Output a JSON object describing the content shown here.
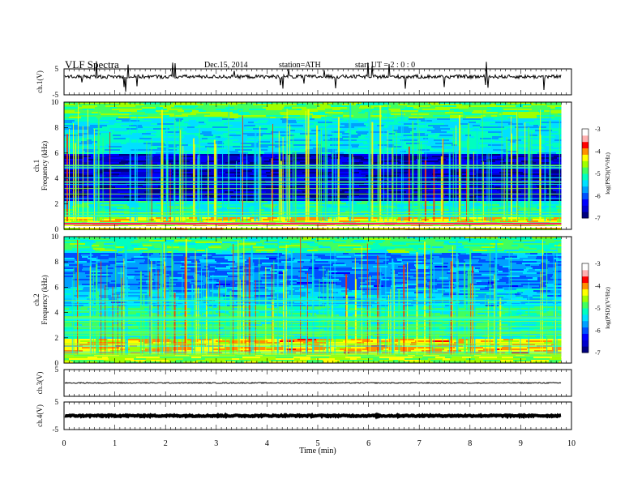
{
  "header": {
    "title": "VLF Spectra",
    "date": "Dec.15, 2014",
    "station": "station=ATH",
    "start": "start UT = 2 : 0 : 0"
  },
  "colors": {
    "background": "#ffffff",
    "trace": "#000000",
    "colormap": [
      "#000080",
      "#0000ff",
      "#0080ff",
      "#00ffff",
      "#00ff80",
      "#80ff00",
      "#ffff00",
      "#ff8000",
      "#ff0000",
      "#ffffff"
    ]
  },
  "chart_data": [
    {
      "id": "ch1-waveform",
      "type": "line",
      "ylabel": "ch.1(V)",
      "ylim": [
        -5,
        5
      ],
      "yticks": [
        "5",
        "-5"
      ],
      "xlim": [
        0,
        10
      ],
      "description_values": "baseline around 2 V with small fluctuations and occasional spikes",
      "level": 2.0
    },
    {
      "id": "ch1-spectrogram",
      "type": "heatmap",
      "ylabel": "Frequency (kHz)",
      "channel_label": "ch.1",
      "ylim": [
        0,
        10
      ],
      "yticks": [
        "0",
        "2",
        "4",
        "6",
        "8",
        "10"
      ],
      "xlim": [
        0,
        10
      ],
      "data_end_min": 9.8,
      "colorbar": {
        "label": "log(PSD)(V²/Hz)",
        "ticks": [
          "-3",
          "-4",
          "-5",
          "-6",
          "-7"
        ],
        "range": [
          -7,
          -3
        ]
      }
    },
    {
      "id": "ch2-spectrogram",
      "type": "heatmap",
      "ylabel": "Frequency (kHz)",
      "channel_label": "ch.2",
      "ylim": [
        0,
        10
      ],
      "yticks": [
        "0",
        "2",
        "4",
        "6",
        "8",
        "10"
      ],
      "xlim": [
        0,
        10
      ],
      "data_end_min": 9.8,
      "colorbar": {
        "label": "log(PSD)(V²/Hz)",
        "ticks": [
          "-3",
          "-4",
          "-5",
          "-6",
          "-7"
        ],
        "range": [
          -7,
          -3
        ]
      }
    },
    {
      "id": "ch3-waveform",
      "type": "line",
      "ylabel": "ch.3(V)",
      "ylim": [
        -5,
        5
      ],
      "yticks": [
        "5"
      ],
      "xlim": [
        0,
        10
      ],
      "level": 0.0
    },
    {
      "id": "ch4-waveform",
      "type": "line",
      "ylabel": "ch.4(V)",
      "ylim": [
        -5,
        5
      ],
      "yticks": [
        "5",
        "-5"
      ],
      "xlim": [
        0,
        10
      ],
      "level": 0.0
    }
  ],
  "xaxis": {
    "label": "Time (min)",
    "ticks": [
      "0",
      "1",
      "2",
      "3",
      "4",
      "5",
      "6",
      "7",
      "8",
      "9",
      "10"
    ]
  }
}
